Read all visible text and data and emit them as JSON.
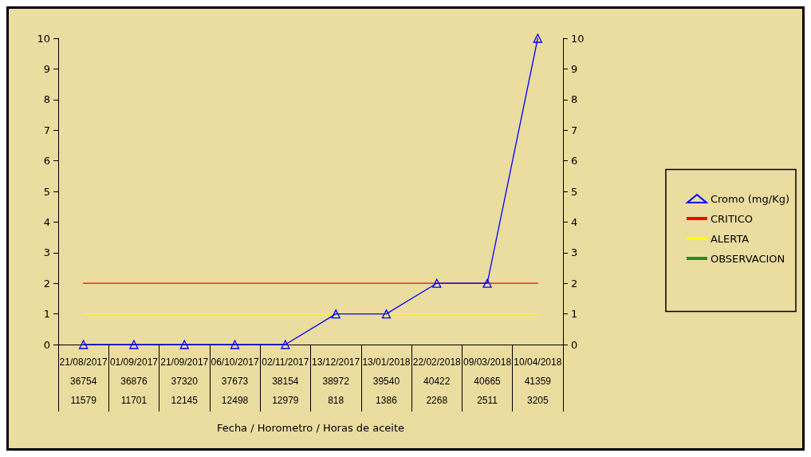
{
  "chart_data": {
    "type": "line",
    "xlabel": "Fecha / Horometro / Horas de aceite",
    "categories": [
      "21/08/2017\n36754\n11579",
      "01/09/2017\n36876\n11701",
      "21/09/2017\n37320\n12145",
      "06/10/2017\n37673\n12498",
      "02/11/2017\n38154\n12979",
      "13/12/2017\n38972\n818",
      "13/01/2018\n39540\n1386",
      "22/02/2018\n40422\n2268",
      "09/03/2018\n40665\n2511",
      "10/04/2018\n41359\n3205"
    ],
    "series": [
      {
        "name": "Cromo (mg/Kg)",
        "color": "#0000ff",
        "marker": "triangle",
        "values": [
          0,
          0,
          0,
          0,
          0,
          1,
          1,
          2,
          2,
          10
        ]
      },
      {
        "name": "CRITICO",
        "color": "#ff0000",
        "marker": "none",
        "values": [
          2,
          2,
          2,
          2,
          2,
          2,
          2,
          2,
          2,
          2
        ]
      },
      {
        "name": "ALERTA",
        "color": "#ffff00",
        "marker": "none",
        "values": [
          1,
          1,
          1,
          1,
          1,
          1,
          1,
          1,
          1,
          1
        ]
      },
      {
        "name": "OBSERVACION",
        "color": "#228b22",
        "marker": "none",
        "values": [
          null,
          null,
          null,
          null,
          null,
          null,
          null,
          null,
          null,
          null
        ]
      }
    ],
    "ylim": [
      0,
      10
    ],
    "yticks": [
      0,
      1,
      2,
      3,
      4,
      5,
      6,
      7,
      8,
      9,
      10
    ],
    "y2lim": [
      0,
      10
    ],
    "y2ticks": [
      0,
      1,
      2,
      3,
      4,
      5,
      6,
      7,
      8,
      9,
      10
    ],
    "grid": false,
    "legend": "right",
    "line_style": "solid"
  }
}
